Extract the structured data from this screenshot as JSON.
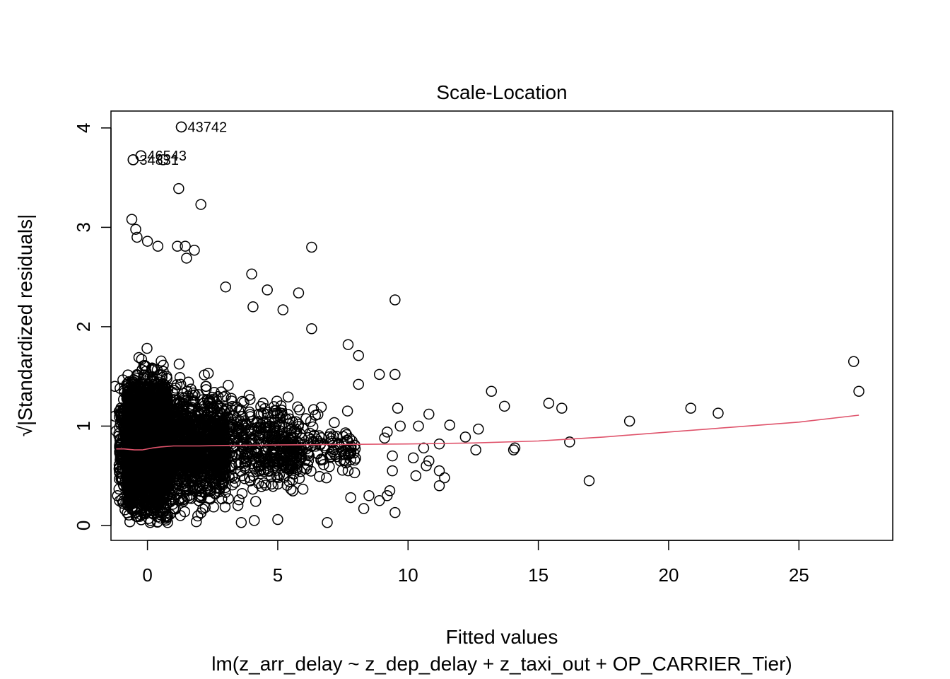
{
  "chart_data": {
    "type": "scatter",
    "title": "Scale-Location",
    "xlabel": "Fitted values",
    "ylabel": "√|Standardized residuals|",
    "subtitle": "lm(z_arr_delay ~ z_dep_delay + z_taxi_out + OP_CARRIER_Tier)",
    "xlim": [
      -1.4,
      28.6
    ],
    "ylim": [
      -0.15,
      4.17
    ],
    "x_ticks": [
      0,
      5,
      10,
      15,
      20,
      25
    ],
    "y_ticks": [
      0,
      1,
      2,
      3,
      4
    ],
    "grid": false,
    "legend": "none",
    "colors": {
      "points": "#000000",
      "smooth": "#DF536B"
    },
    "labeled_points": [
      {
        "label": "43742",
        "x": 1.3,
        "y": 4.01
      },
      {
        "label": "46543",
        "x": -0.25,
        "y": 3.72
      },
      {
        "label": "34831",
        "x": -0.55,
        "y": 3.68
      }
    ],
    "outlier_points": [
      [
        -0.55,
        3.68
      ],
      [
        -0.25,
        3.72
      ],
      [
        0.6,
        3.68
      ],
      [
        1.3,
        4.01
      ],
      [
        1.2,
        3.39
      ],
      [
        2.05,
        3.23
      ],
      [
        -0.6,
        3.08
      ],
      [
        -0.45,
        2.98
      ],
      [
        -0.4,
        2.9
      ],
      [
        0.0,
        2.86
      ],
      [
        0.4,
        2.81
      ],
      [
        1.15,
        2.81
      ],
      [
        1.45,
        2.81
      ],
      [
        1.8,
        2.77
      ],
      [
        1.5,
        2.69
      ],
      [
        6.3,
        2.8
      ],
      [
        4.0,
        2.53
      ],
      [
        5.8,
        2.34
      ],
      [
        9.5,
        2.27
      ],
      [
        4.6,
        2.37
      ],
      [
        3.0,
        2.4
      ],
      [
        4.05,
        2.2
      ],
      [
        5.2,
        2.17
      ],
      [
        6.3,
        1.98
      ],
      [
        7.7,
        1.82
      ],
      [
        8.1,
        1.71
      ],
      [
        8.9,
        1.52
      ],
      [
        9.5,
        1.52
      ],
      [
        8.1,
        1.42
      ],
      [
        9.6,
        1.18
      ],
      [
        9.7,
        1.0
      ],
      [
        10.4,
        1.0
      ],
      [
        10.8,
        1.12
      ],
      [
        11.6,
        1.01
      ],
      [
        12.2,
        0.89
      ],
      [
        12.7,
        0.97
      ],
      [
        12.6,
        0.76
      ],
      [
        11.2,
        0.82
      ],
      [
        10.6,
        0.78
      ],
      [
        10.2,
        0.68
      ],
      [
        10.3,
        0.5
      ],
      [
        10.8,
        0.65
      ],
      [
        10.7,
        0.6
      ],
      [
        11.2,
        0.55
      ],
      [
        11.4,
        0.48
      ],
      [
        11.2,
        0.4
      ],
      [
        9.4,
        0.55
      ],
      [
        9.4,
        0.7
      ],
      [
        9.1,
        0.88
      ],
      [
        9.2,
        0.94
      ],
      [
        9.3,
        0.35
      ],
      [
        9.2,
        0.3
      ],
      [
        8.9,
        0.25
      ],
      [
        9.5,
        0.13
      ],
      [
        13.2,
        1.35
      ],
      [
        13.7,
        1.2
      ],
      [
        15.4,
        1.23
      ],
      [
        15.9,
        1.18
      ],
      [
        16.2,
        0.84
      ],
      [
        14.1,
        0.78
      ],
      [
        14.05,
        0.76
      ],
      [
        16.95,
        0.45
      ],
      [
        18.5,
        1.05
      ],
      [
        20.85,
        1.18
      ],
      [
        21.9,
        1.13
      ],
      [
        27.1,
        1.65
      ],
      [
        27.3,
        1.35
      ],
      [
        6.9,
        0.03
      ],
      [
        -1.25,
        1.4
      ],
      [
        -1.25,
        1.1
      ],
      [
        -1.2,
        0.95
      ],
      [
        -1.15,
        0.3
      ],
      [
        3.6,
        0.03
      ],
      [
        4.1,
        0.05
      ],
      [
        5.0,
        0.06
      ],
      [
        7.4,
        0.65
      ],
      [
        7.7,
        0.55
      ],
      [
        8.3,
        0.17
      ],
      [
        7.8,
        0.28
      ],
      [
        8.5,
        0.3
      ]
    ],
    "smooth_line": {
      "x": [
        -1.2,
        -0.9,
        -0.5,
        -0.2,
        0.2,
        0.5,
        1.0,
        2.0,
        3.0,
        5.0,
        7.5,
        10.0,
        12.5,
        15.0,
        17.5,
        20.0,
        22.5,
        25.0,
        27.3
      ],
      "y": [
        0.77,
        0.77,
        0.76,
        0.76,
        0.78,
        0.79,
        0.8,
        0.8,
        0.805,
        0.81,
        0.815,
        0.82,
        0.83,
        0.85,
        0.89,
        0.94,
        0.99,
        1.04,
        1.11
      ]
    }
  }
}
